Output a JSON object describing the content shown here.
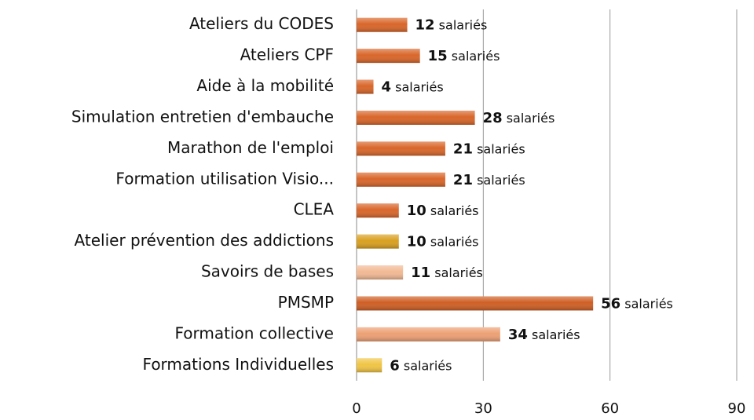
{
  "chart_data": {
    "type": "bar",
    "orientation": "horizontal",
    "categories": [
      "Ateliers du CODES",
      "Ateliers CPF",
      "Aide à la mobilité",
      "Simulation entretien d'embauche",
      "Marathon de l'emploi",
      "Formation utilisation Visio...",
      "CLEA",
      "Atelier prévention des addictions",
      "Savoirs de bases",
      "PMSMP",
      "Formation collective",
      "Formations Individuelles"
    ],
    "values": [
      12,
      15,
      4,
      28,
      21,
      21,
      10,
      10,
      11,
      56,
      34,
      6
    ],
    "value_labels": [
      "12 salariés",
      "15 salariés",
      "4 salariés",
      "28 salariés",
      "21 salariés",
      "21 salariés",
      "10 salariés",
      "10 salariés",
      "11 salariés",
      "56 salariés",
      "34 salariés",
      "6 salariés"
    ],
    "colors": [
      "#d9662a",
      "#d9662a",
      "#d9662a",
      "#d9662a",
      "#d9662a",
      "#d9662a",
      "#d9662a",
      "#d9a020",
      "#f2b994",
      "#cf5f25",
      "#eda074",
      "#f0c545"
    ],
    "xlim": [
      0,
      90
    ],
    "xticks": [
      0,
      30,
      60,
      90
    ],
    "grid": true
  }
}
